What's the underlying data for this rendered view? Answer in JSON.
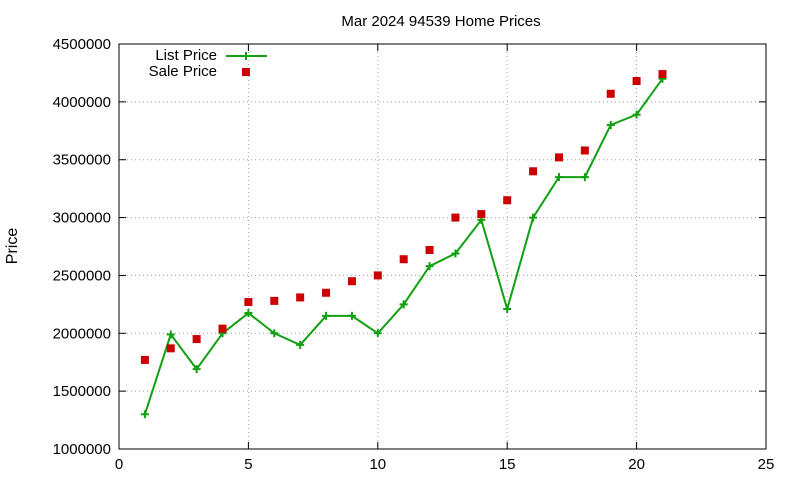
{
  "chart_data": {
    "type": "line",
    "title": "Mar 2024 94539 Home Prices",
    "xlabel": "",
    "ylabel": "Price",
    "xlim": [
      0,
      25
    ],
    "ylim": [
      1000000,
      4500000
    ],
    "x_ticks": [
      0,
      5,
      10,
      15,
      20,
      25
    ],
    "y_ticks": [
      1000000,
      1500000,
      2000000,
      2500000,
      3000000,
      3500000,
      4000000,
      4500000
    ],
    "grid": true,
    "legend_position": "top-left",
    "series": [
      {
        "name": "List Price",
        "style": "line-with-plus-markers",
        "color": "#11a011",
        "x": [
          1,
          2,
          3,
          4,
          5,
          6,
          7,
          8,
          9,
          10,
          11,
          12,
          13,
          14,
          15,
          16,
          17,
          18,
          19,
          20,
          21
        ],
        "values": [
          1300000,
          1990000,
          1690000,
          2000000,
          2175000,
          2000000,
          1900000,
          2150000,
          2150000,
          2000000,
          2250000,
          2580000,
          2690000,
          2980000,
          2210000,
          3000000,
          3350000,
          3350000,
          3800000,
          3890000,
          4200000
        ]
      },
      {
        "name": "Sale Price",
        "style": "square-markers",
        "color": "#cc0000",
        "x": [
          1,
          2,
          3,
          4,
          5,
          6,
          7,
          8,
          9,
          10,
          11,
          12,
          13,
          14,
          15,
          16,
          17,
          18,
          19,
          20,
          21
        ],
        "values": [
          1770000,
          1870000,
          1950000,
          2040000,
          2270000,
          2280000,
          2310000,
          2350000,
          2450000,
          2500000,
          2640000,
          2720000,
          3000000,
          3030000,
          3150000,
          3400000,
          3520000,
          3580000,
          4070000,
          4180000,
          4240000
        ]
      }
    ]
  }
}
